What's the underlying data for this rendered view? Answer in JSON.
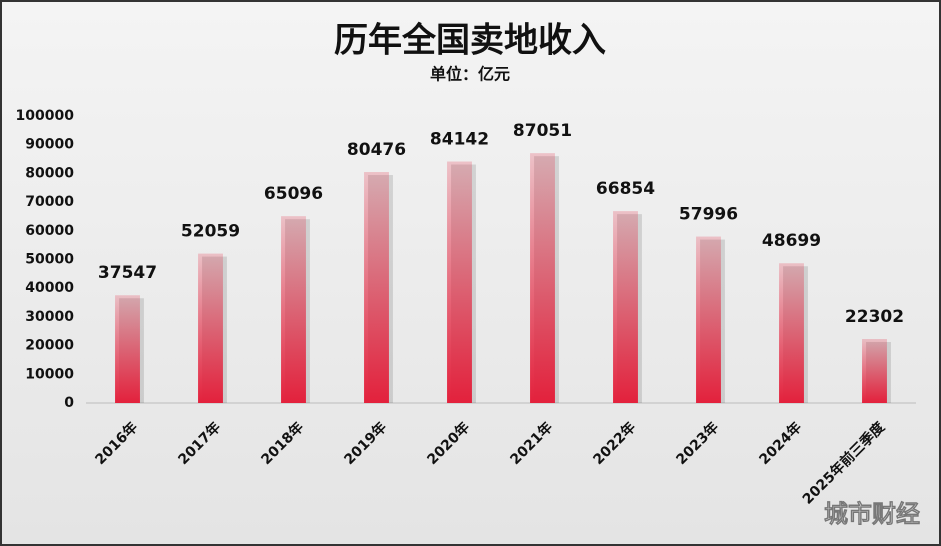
{
  "chart_data": {
    "type": "bar",
    "title": "历年全国卖地收入",
    "subtitle": "单位：亿元",
    "categories": [
      "2016年",
      "2017年",
      "2018年",
      "2019年",
      "2020年",
      "2021年",
      "2022年",
      "2023年",
      "2024年",
      "2025年前三季度"
    ],
    "values": [
      37547,
      52059,
      65096,
      80476,
      84142,
      87051,
      66854,
      57996,
      48699,
      22302
    ],
    "color": "#e3213c",
    "ylim": [
      0,
      100000
    ],
    "yticks": [
      0,
      10000,
      20000,
      30000,
      40000,
      50000,
      60000,
      70000,
      80000,
      90000,
      100000
    ],
    "grid": false
  },
  "watermark": "城市财经"
}
